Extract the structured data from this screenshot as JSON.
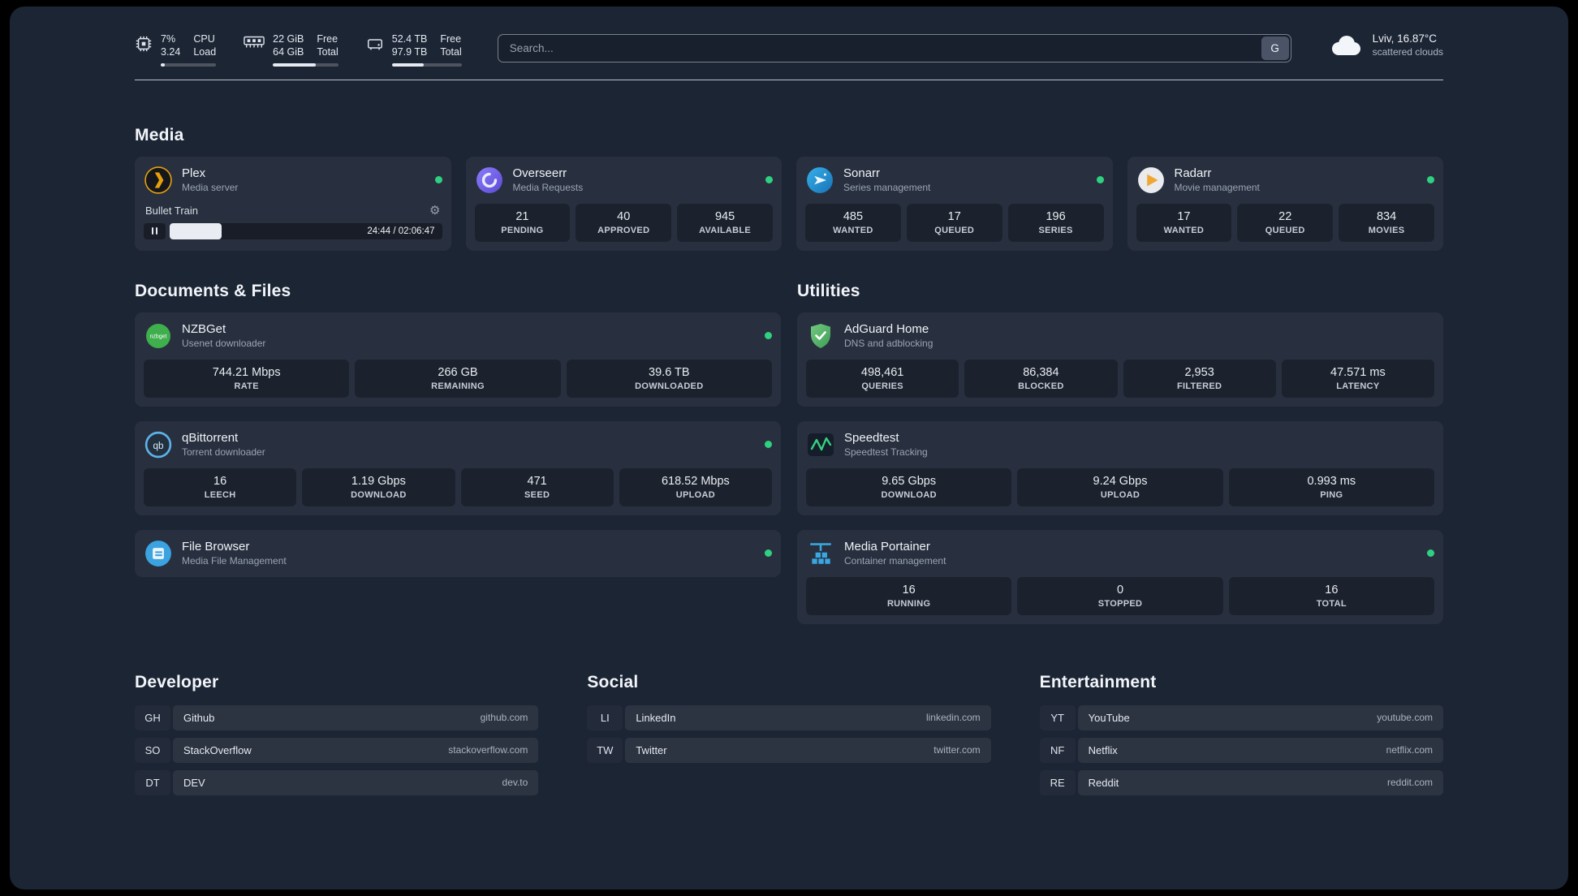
{
  "topbar": {
    "cpu": {
      "icon": "cpu-icon",
      "percent": "7%",
      "load": "3.24",
      "label_top": "CPU",
      "label_bottom": "Load",
      "bar_percent": 7
    },
    "memory": {
      "icon": "memory-icon",
      "free": "22 GiB",
      "total": "64 GiB",
      "label_top": "Free",
      "label_bottom": "Total",
      "bar_percent": 66
    },
    "disk": {
      "icon": "disk-icon",
      "free": "52.4 TB",
      "total": "97.9 TB",
      "label_top": "Free",
      "label_bottom": "Total",
      "bar_percent": 46
    },
    "search": {
      "placeholder": "Search...",
      "provider": "G"
    },
    "weather": {
      "icon": "cloud-icon",
      "location": "Lviv, 16.87°C",
      "condition": "scattered clouds"
    }
  },
  "sections": {
    "media": {
      "title": "Media",
      "cards": [
        {
          "name": "Plex",
          "subtitle": "Media server",
          "icon": "plex-icon",
          "status": "online",
          "player": {
            "track": "Bullet Train",
            "time": "24:44 / 02:06:47",
            "progress_percent": 19
          }
        },
        {
          "name": "Overseerr",
          "subtitle": "Media Requests",
          "icon": "overseerr-icon",
          "status": "online",
          "stats": [
            {
              "value": "21",
              "label": "PENDING"
            },
            {
              "value": "40",
              "label": "APPROVED"
            },
            {
              "value": "945",
              "label": "AVAILABLE"
            }
          ]
        },
        {
          "name": "Sonarr",
          "subtitle": "Series management",
          "icon": "sonarr-icon",
          "status": "online",
          "stats": [
            {
              "value": "485",
              "label": "WANTED"
            },
            {
              "value": "17",
              "label": "QUEUED"
            },
            {
              "value": "196",
              "label": "SERIES"
            }
          ]
        },
        {
          "name": "Radarr",
          "subtitle": "Movie management",
          "icon": "radarr-icon",
          "status": "online",
          "stats": [
            {
              "value": "17",
              "label": "WANTED"
            },
            {
              "value": "22",
              "label": "QUEUED"
            },
            {
              "value": "834",
              "label": "MOVIES"
            }
          ]
        }
      ]
    },
    "documents": {
      "title": "Documents & Files",
      "cards": [
        {
          "name": "NZBGet",
          "subtitle": "Usenet downloader",
          "icon": "nzbget-icon",
          "status": "online",
          "stats": [
            {
              "value": "744.21 Mbps",
              "label": "RATE"
            },
            {
              "value": "266 GB",
              "label": "REMAINING"
            },
            {
              "value": "39.6 TB",
              "label": "DOWNLOADED"
            }
          ]
        },
        {
          "name": "qBittorrent",
          "subtitle": "Torrent downloader",
          "icon": "qbittorrent-icon",
          "status": "online",
          "stats": [
            {
              "value": "16",
              "label": "LEECH"
            },
            {
              "value": "1.19 Gbps",
              "label": "DOWNLOAD"
            },
            {
              "value": "471",
              "label": "SEED"
            },
            {
              "value": "618.52 Mbps",
              "label": "UPLOAD"
            }
          ]
        },
        {
          "name": "File Browser",
          "subtitle": "Media File Management",
          "icon": "filebrowser-icon",
          "status": "online",
          "stats": []
        }
      ]
    },
    "utilities": {
      "title": "Utilities",
      "cards": [
        {
          "name": "AdGuard Home",
          "subtitle": "DNS and adblocking",
          "icon": "adguard-icon",
          "stats": [
            {
              "value": "498,461",
              "label": "QUERIES"
            },
            {
              "value": "86,384",
              "label": "BLOCKED"
            },
            {
              "value": "2,953",
              "label": "FILTERED"
            },
            {
              "value": "47.571 ms",
              "label": "LATENCY"
            }
          ]
        },
        {
          "name": "Speedtest",
          "subtitle": "Speedtest Tracking",
          "icon": "speedtest-icon",
          "stats": [
            {
              "value": "9.65 Gbps",
              "label": "DOWNLOAD"
            },
            {
              "value": "9.24 Gbps",
              "label": "UPLOAD"
            },
            {
              "value": "0.993 ms",
              "label": "PING"
            }
          ]
        },
        {
          "name": "Media Portainer",
          "subtitle": "Container management",
          "icon": "portainer-icon",
          "status": "online",
          "stats": [
            {
              "value": "16",
              "label": "RUNNING"
            },
            {
              "value": "0",
              "label": "STOPPED"
            },
            {
              "value": "16",
              "label": "TOTAL"
            }
          ]
        }
      ]
    },
    "bookmarks": [
      {
        "title": "Developer",
        "items": [
          {
            "abbr": "GH",
            "name": "Github",
            "url": "github.com"
          },
          {
            "abbr": "SO",
            "name": "StackOverflow",
            "url": "stackoverflow.com"
          },
          {
            "abbr": "DT",
            "name": "DEV",
            "url": "dev.to"
          }
        ]
      },
      {
        "title": "Social",
        "items": [
          {
            "abbr": "LI",
            "name": "LinkedIn",
            "url": "linkedin.com"
          },
          {
            "abbr": "TW",
            "name": "Twitter",
            "url": "twitter.com"
          }
        ]
      },
      {
        "title": "Entertainment",
        "items": [
          {
            "abbr": "YT",
            "name": "YouTube",
            "url": "youtube.com"
          },
          {
            "abbr": "NF",
            "name": "Netflix",
            "url": "netflix.com"
          },
          {
            "abbr": "RE",
            "name": "Reddit",
            "url": "reddit.com"
          }
        ]
      }
    ]
  },
  "colors": {
    "status_online": "#2fd180",
    "plex_amber": "#e5a00d",
    "overseerr_purple": "#7b6af0",
    "sonarr_blue": "#35b0e8",
    "radarr_amber": "#f0a732",
    "nzbget_green": "#3fae4d",
    "qbittorrent_blue": "#3998db",
    "filebrowser_blue": "#3ba3e0",
    "adguard_green": "#5bba6e",
    "speedtest_green": "#35d07f",
    "portainer_blue": "#3aa7e0"
  }
}
